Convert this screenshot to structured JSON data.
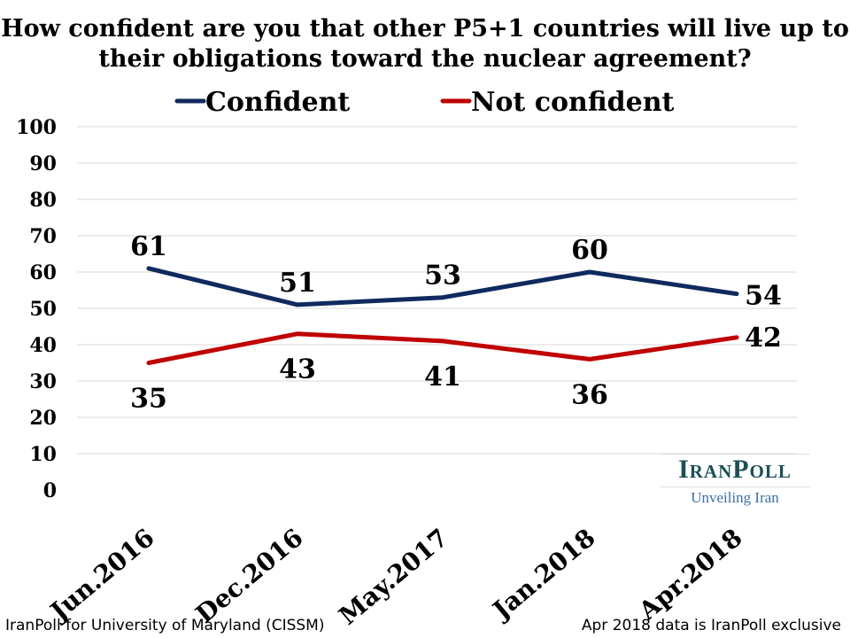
{
  "chart_data": {
    "type": "line",
    "title": "How confident are you that other P5+1 countries will live up to their obligations toward the nuclear agreement?",
    "categories": [
      "Jun.2016",
      "Dec.2016",
      "May.2017",
      "Jan.2018",
      "Apr.2018"
    ],
    "series": [
      {
        "name": "Confident",
        "color": "#0f2a5e",
        "values": [
          61,
          51,
          53,
          60,
          54
        ]
      },
      {
        "name": "Not confident",
        "color": "#c00000",
        "values": [
          35,
          43,
          41,
          36,
          42
        ]
      }
    ],
    "ylim": [
      0,
      100
    ],
    "yticks": [
      "0",
      "10",
      "20",
      "30",
      "40",
      "50",
      "60",
      "70",
      "80",
      "90",
      "100"
    ],
    "grid": true,
    "legend": "top"
  },
  "logo": {
    "brand": "IranPoll",
    "tagline": "Unveiling Iran"
  },
  "footer": {
    "source": "IranPoll for University of Maryland (CISSM)",
    "note": "Apr 2018 data is IranPoll exclusive"
  }
}
